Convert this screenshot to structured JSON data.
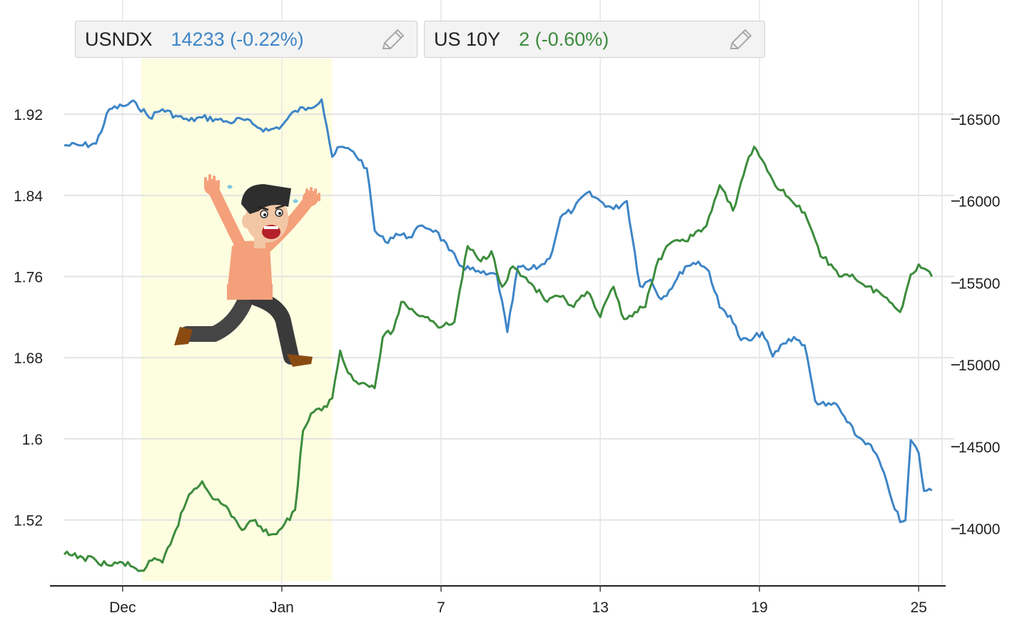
{
  "legend": [
    {
      "symbol": "USNDX",
      "value": "14233 (-0.22%)",
      "color": "#3d85c6",
      "edit_icon": "pencil-icon"
    },
    {
      "symbol": "US 10Y",
      "value": "2 (-0.60%)",
      "color": "#3c8c3c",
      "edit_icon": "pencil-icon"
    }
  ],
  "illustration": "panicked-running-man",
  "highlight_color": "#fdfde0",
  "chart_data": {
    "type": "line",
    "x_ticks": [
      "Dec",
      "Jan",
      "7",
      "13",
      "19",
      "25"
    ],
    "x_tick_positions": [
      0.5,
      6.5,
      12.5,
      18.5,
      24.5,
      30.5
    ],
    "xlim": [
      -1.7,
      31.3
    ],
    "highlight_range": [
      1.2,
      8.4
    ],
    "y_left": {
      "ticks": [
        "1.92",
        "1.84",
        "1.76",
        "1.68",
        "1.6",
        "1.52"
      ],
      "ylim": [
        1.455,
        1.975
      ]
    },
    "y_right": {
      "ticks": [
        "16500",
        "16000",
        "15500",
        "15000",
        "14500",
        "14000"
      ],
      "ylim": [
        13650,
        16870
      ]
    },
    "series": [
      {
        "name": "USNDX",
        "axis": "right",
        "color": "#3d85c6",
        "x": [
          -1.7,
          -1.0,
          -0.5,
          0,
          0.5,
          1.0,
          1.5,
          2.0,
          2.5,
          3.0,
          3.5,
          4.0,
          4.5,
          5.0,
          5.5,
          6.0,
          6.5,
          7.0,
          7.5,
          8.0,
          8.2,
          8.4,
          8.7,
          9.2,
          9.7,
          10.0,
          10.4,
          10.8,
          11.3,
          11.8,
          12.3,
          12.8,
          13.3,
          13.8,
          14.2,
          14.6,
          15.0,
          15.4,
          15.8,
          16.2,
          16.6,
          17.0,
          17.5,
          18.0,
          18.5,
          19.0,
          19.5,
          20.0,
          20.4,
          20.8,
          21.3,
          21.7,
          22.2,
          22.6,
          23.0,
          23.4,
          23.8,
          24.2,
          24.6,
          25.0,
          25.4,
          25.8,
          26.2,
          26.6,
          27.0,
          27.4,
          27.8,
          28.2,
          28.6,
          29.0,
          29.4,
          29.8,
          30.0,
          30.2,
          30.5,
          30.7,
          31.0
        ],
        "values": [
          16340,
          16340,
          16350,
          16560,
          16580,
          16600,
          16510,
          16560,
          16520,
          16490,
          16510,
          16500,
          16480,
          16500,
          16460,
          16430,
          16460,
          16550,
          16570,
          16620,
          16450,
          16270,
          16330,
          16300,
          16200,
          15820,
          15750,
          15800,
          15780,
          15850,
          15820,
          15700,
          15600,
          15570,
          15550,
          15550,
          15200,
          15600,
          15580,
          15600,
          15650,
          15900,
          15950,
          16050,
          16000,
          15950,
          16000,
          15480,
          15520,
          15400,
          15500,
          15600,
          15630,
          15570,
          15350,
          15300,
          15150,
          15150,
          15200,
          15050,
          15130,
          15170,
          15120,
          14780,
          14750,
          14760,
          14650,
          14560,
          14520,
          14420,
          14220,
          14040,
          14050,
          14540,
          14460,
          14230,
          14233
        ]
      },
      {
        "name": "US 10Y",
        "axis": "left",
        "color": "#3c8c3c",
        "x": [
          -1.7,
          -1.0,
          -0.5,
          0,
          0.5,
          1.0,
          1.3,
          1.6,
          2.0,
          2.5,
          3.0,
          3.5,
          4.0,
          4.5,
          5.0,
          5.5,
          6.0,
          6.5,
          7.0,
          7.3,
          7.6,
          8.0,
          8.4,
          8.7,
          9.0,
          9.5,
          10.0,
          10.3,
          10.7,
          11.0,
          11.5,
          12.0,
          12.5,
          13.0,
          13.5,
          14.0,
          14.4,
          14.8,
          15.2,
          15.6,
          16.0,
          16.5,
          17.0,
          17.5,
          18.0,
          18.5,
          19.0,
          19.4,
          19.8,
          20.2,
          20.6,
          21.0,
          21.5,
          22.0,
          22.5,
          23.0,
          23.5,
          24.0,
          24.3,
          24.6,
          25.0,
          25.3,
          25.7,
          26.0,
          26.4,
          26.8,
          27.2,
          27.6,
          28.0,
          28.5,
          29.0,
          29.4,
          29.8,
          30.2,
          30.5,
          30.7,
          31.0
        ],
        "values": [
          1.486,
          1.483,
          1.48,
          1.475,
          1.478,
          1.472,
          1.47,
          1.48,
          1.478,
          1.51,
          1.545,
          1.558,
          1.54,
          1.53,
          1.51,
          1.52,
          1.505,
          1.512,
          1.53,
          1.608,
          1.625,
          1.628,
          1.64,
          1.687,
          1.665,
          1.655,
          1.65,
          1.7,
          1.707,
          1.735,
          1.725,
          1.72,
          1.71,
          1.715,
          1.79,
          1.775,
          1.785,
          1.75,
          1.77,
          1.76,
          1.75,
          1.735,
          1.74,
          1.73,
          1.745,
          1.72,
          1.75,
          1.718,
          1.725,
          1.73,
          1.77,
          1.79,
          1.795,
          1.8,
          1.81,
          1.85,
          1.825,
          1.87,
          1.888,
          1.875,
          1.855,
          1.845,
          1.835,
          1.83,
          1.81,
          1.78,
          1.772,
          1.76,
          1.762,
          1.75,
          1.745,
          1.735,
          1.725,
          1.762,
          1.772,
          1.768,
          1.76
        ]
      }
    ],
    "grid": true
  }
}
